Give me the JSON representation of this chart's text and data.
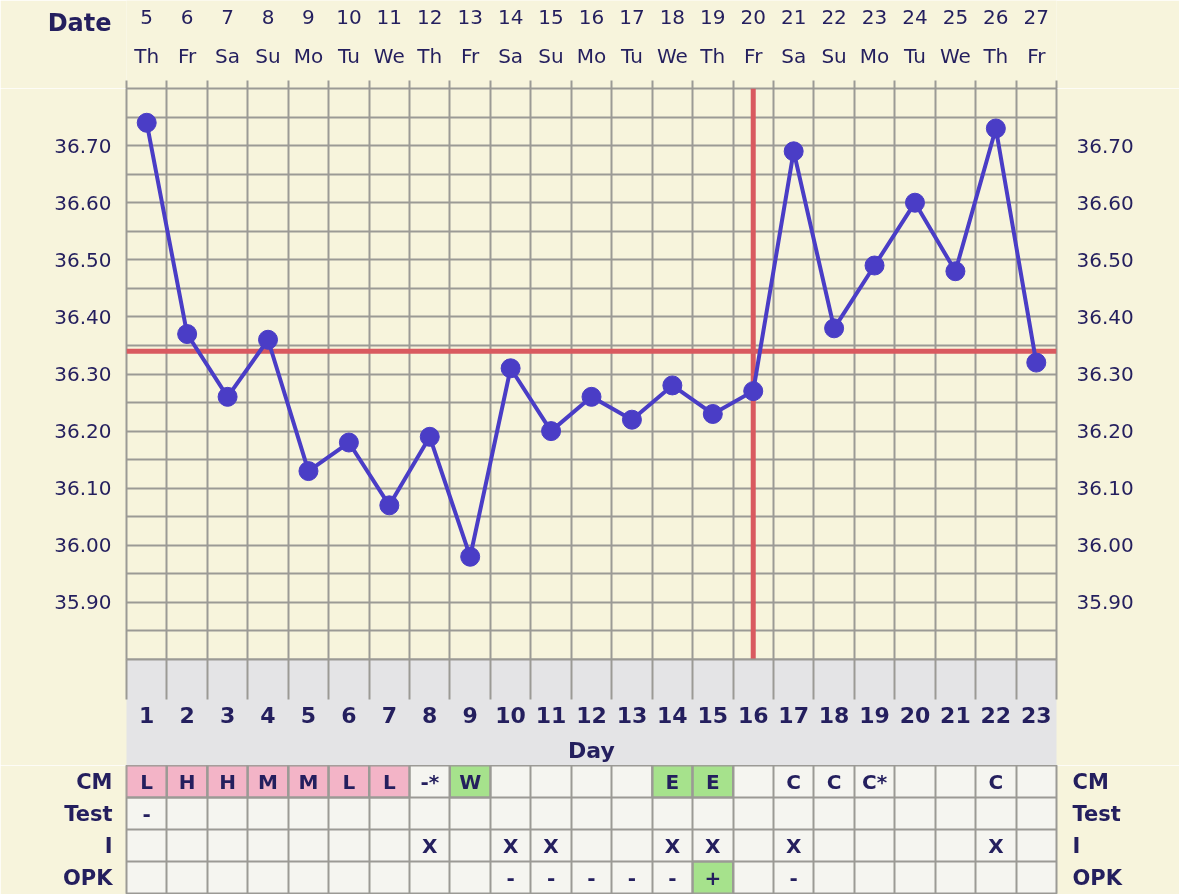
{
  "chart_data": [
    {
      "type": "line",
      "xlabel": "Day",
      "x2label": "Date",
      "x": [
        1,
        2,
        3,
        4,
        5,
        6,
        7,
        8,
        9,
        10,
        11,
        12,
        13,
        14,
        15,
        16,
        17,
        18,
        19,
        20,
        21,
        22,
        23
      ],
      "values": [
        36.74,
        36.37,
        36.26,
        36.36,
        36.13,
        36.18,
        36.07,
        36.19,
        35.98,
        36.31,
        36.2,
        36.26,
        36.22,
        36.28,
        36.23,
        36.27,
        36.69,
        36.38,
        36.49,
        36.6,
        36.48,
        36.73,
        36.32
      ],
      "color": "#4a3dc6",
      "marker": "circle",
      "line_style": "solid",
      "grid": true,
      "xlim": [
        0.5,
        23.5
      ],
      "xticks": [
        {
          "value": 0.5,
          "label": null
        },
        1,
        {
          "value": 1.5,
          "label": null
        },
        2,
        {
          "value": 2.5,
          "label": null
        },
        3,
        {
          "value": 3.5,
          "label": null
        },
        4,
        {
          "value": 4.5,
          "label": null
        },
        5,
        {
          "value": 5.5,
          "label": null
        },
        6,
        {
          "value": 6.5,
          "label": null
        },
        7,
        {
          "value": 7.5,
          "label": null
        },
        8,
        {
          "value": 8.5,
          "label": null
        },
        9,
        {
          "value": 9.5,
          "label": null
        },
        10,
        {
          "value": 10.5,
          "label": null
        },
        11,
        {
          "value": 11.5,
          "label": null
        },
        12,
        {
          "value": 12.5,
          "label": null
        },
        13,
        {
          "value": 13.5,
          "label": null
        },
        14,
        {
          "value": 14.5,
          "label": null
        },
        15,
        {
          "value": 15.5,
          "label": null
        },
        16,
        {
          "value": 16.5,
          "label": null
        },
        17,
        {
          "value": 17.5,
          "label": null
        },
        18,
        {
          "value": 18.5,
          "label": null
        },
        19,
        {
          "value": 19.5,
          "label": null
        },
        20,
        {
          "value": 20.5,
          "label": null
        },
        21,
        {
          "value": 21.5,
          "label": null
        },
        22,
        {
          "value": 22.5,
          "label": null
        },
        23,
        {
          "value": 23.5,
          "label": null
        }
      ],
      "x2lim": [
        4.5,
        27.5
      ],
      "x2ticks": [
        {
          "value": 4.5,
          "label": null
        },
        {
          "value": 5,
          "label": "5\nTh"
        },
        {
          "value": 5.5,
          "label": null
        },
        {
          "value": 6,
          "label": "6\nFr"
        },
        {
          "value": 6.5,
          "label": null
        },
        {
          "value": 7,
          "label": "7\nSa"
        },
        {
          "value": 7.5,
          "label": null
        },
        {
          "value": 8,
          "label": "8\nSu"
        },
        {
          "value": 8.5,
          "label": null
        },
        {
          "value": 9,
          "label": "9\nMo"
        },
        {
          "value": 9.5,
          "label": null
        },
        {
          "value": 10,
          "label": "10\nTu"
        },
        {
          "value": 10.5,
          "label": null
        },
        {
          "value": 11,
          "label": "11\nWe"
        },
        {
          "value": 11.5,
          "label": null
        },
        {
          "value": 12,
          "label": "12\nTh"
        },
        {
          "value": 12.5,
          "label": null
        },
        {
          "value": 13,
          "label": "13\nFr"
        },
        {
          "value": 13.5,
          "label": null
        },
        {
          "value": 14,
          "label": "14\nSa"
        },
        {
          "value": 14.5,
          "label": null
        },
        {
          "value": 15,
          "label": "15\nSu"
        },
        {
          "value": 15.5,
          "label": null
        },
        {
          "value": 16,
          "label": "16\nMo"
        },
        {
          "value": 16.5,
          "label": null
        },
        {
          "value": 17,
          "label": "17\nTu"
        },
        {
          "value": 17.5,
          "label": null
        },
        {
          "value": 18,
          "label": "18\nWe"
        },
        {
          "value": 18.5,
          "label": null
        },
        {
          "value": 19,
          "label": "19\nTh"
        },
        {
          "value": 19.5,
          "label": null
        },
        {
          "value": 20,
          "label": "20\nFr"
        },
        {
          "value": 20.5,
          "label": null
        },
        {
          "value": 21,
          "label": "21\nSa"
        },
        {
          "value": 21.5,
          "label": null
        },
        {
          "value": 22,
          "label": "22\nSu"
        },
        {
          "value": 22.5,
          "label": null
        },
        {
          "value": 23,
          "label": "23\nMo"
        },
        {
          "value": 23.5,
          "label": null
        },
        {
          "value": 24,
          "label": "24\nTu"
        },
        {
          "value": 24.5,
          "label": null
        },
        {
          "value": 25,
          "label": "25\nWe"
        },
        {
          "value": 25.5,
          "label": null
        },
        {
          "value": 26,
          "label": "26\nTh"
        },
        {
          "value": 26.5,
          "label": null
        },
        {
          "value": 27,
          "label": "27\nFr"
        },
        {
          "value": 27.5,
          "label": null
        }
      ],
      "ylim": [
        35.8,
        36.8
      ],
      "yticks": [
        {
          "value": 35.85,
          "label": null
        },
        {
          "value": 35.9,
          "label": "35.90"
        },
        {
          "value": 35.95,
          "label": null
        },
        {
          "value": 36.0,
          "label": "36.00"
        },
        {
          "value": 36.05,
          "label": null
        },
        {
          "value": 36.1,
          "label": "36.10"
        },
        {
          "value": 36.15,
          "label": null
        },
        {
          "value": 36.2,
          "label": "36.20"
        },
        {
          "value": 36.25,
          "label": null
        },
        {
          "value": 36.3,
          "label": "36.30"
        },
        {
          "value": 36.35,
          "label": null
        },
        {
          "value": 36.4,
          "label": "36.40"
        },
        {
          "value": 36.45,
          "label": null
        },
        {
          "value": 36.5,
          "label": "36.50"
        },
        {
          "value": 36.55,
          "label": null
        },
        {
          "value": 36.6,
          "label": "36.60"
        },
        {
          "value": 36.65,
          "label": null
        },
        {
          "value": 36.7,
          "label": "36.70"
        },
        {
          "value": 36.75,
          "label": null
        }
      ],
      "y2lim": [
        35.8,
        36.8
      ],
      "y2ticks": [
        {
          "value": 35.85,
          "label": null
        },
        {
          "value": 35.9,
          "label": "35.90"
        },
        {
          "value": 35.95,
          "label": null
        },
        {
          "value": 36.0,
          "label": "36.00"
        },
        {
          "value": 36.05,
          "label": null
        },
        {
          "value": 36.1,
          "label": "36.10"
        },
        {
          "value": 36.15,
          "label": null
        },
        {
          "value": 36.2,
          "label": "36.20"
        },
        {
          "value": 36.25,
          "label": null
        },
        {
          "value": 36.3,
          "label": "36.30"
        },
        {
          "value": 36.35,
          "label": null
        },
        {
          "value": 36.4,
          "label": "36.40"
        },
        {
          "value": 36.45,
          "label": null
        },
        {
          "value": 36.5,
          "label": "36.50"
        },
        {
          "value": 36.55,
          "label": null
        },
        {
          "value": 36.6,
          "label": "36.60"
        },
        {
          "value": 36.65,
          "label": null
        },
        {
          "value": 36.7,
          "label": "36.70"
        },
        {
          "value": 36.75,
          "label": null
        }
      ],
      "ref_lines": [
        {
          "axis": "y",
          "value": 36.34,
          "color": "#d95a60"
        },
        {
          "axis": "x",
          "value": 16,
          "color": "#d95a60"
        }
      ]
    },
    {
      "type": "other",
      "y_categories": [
        "CM",
        "Test",
        "I",
        "OPK"
      ],
      "y2_categories": [
        "CM",
        "Test",
        "I",
        "OPK"
      ],
      "cell_labels": [
        [
          "L",
          "H",
          "H",
          "M",
          "M",
          "L",
          "L",
          "-*",
          "W",
          null,
          null,
          null,
          null,
          "E",
          "E",
          null,
          "C",
          "C",
          "C*",
          null,
          null,
          "C",
          null
        ],
        [
          "-",
          null,
          null,
          null,
          null,
          null,
          null,
          null,
          null,
          null,
          null,
          null,
          null,
          null,
          null,
          null,
          null,
          null,
          null,
          null,
          null,
          null,
          null
        ],
        [
          null,
          null,
          null,
          null,
          null,
          null,
          null,
          "X",
          null,
          "X",
          "X",
          null,
          null,
          "X",
          "X",
          null,
          "X",
          null,
          null,
          null,
          null,
          "X",
          null
        ],
        [
          null,
          null,
          null,
          null,
          null,
          null,
          null,
          null,
          null,
          "-",
          "-",
          "-",
          "-",
          "-",
          "+",
          null,
          "-",
          null,
          null,
          null,
          null,
          null,
          null
        ]
      ],
      "colors": [
        [
          "#f3b4c7",
          "#f3b4c7",
          "#f3b4c7",
          "#f3b4c7",
          "#f3b4c7",
          "#f3b4c7",
          "#f3b4c7",
          null,
          "#a6e28c",
          null,
          null,
          null,
          null,
          "#a6e28c",
          "#a6e28c",
          null,
          null,
          null,
          null,
          null,
          null,
          null,
          null
        ],
        [
          null,
          null,
          null,
          null,
          null,
          null,
          null,
          null,
          null,
          null,
          null,
          null,
          null,
          null,
          null,
          null,
          null,
          null,
          null,
          null,
          null,
          null,
          null
        ],
        [
          null,
          null,
          null,
          null,
          null,
          null,
          null,
          null,
          null,
          null,
          null,
          null,
          null,
          null,
          null,
          null,
          null,
          null,
          null,
          null,
          null,
          null,
          null
        ],
        [
          null,
          null,
          null,
          null,
          null,
          null,
          null,
          null,
          null,
          null,
          null,
          null,
          null,
          null,
          "#a6e28c",
          null,
          null,
          null,
          null,
          null,
          null,
          null,
          null
        ]
      ]
    }
  ]
}
